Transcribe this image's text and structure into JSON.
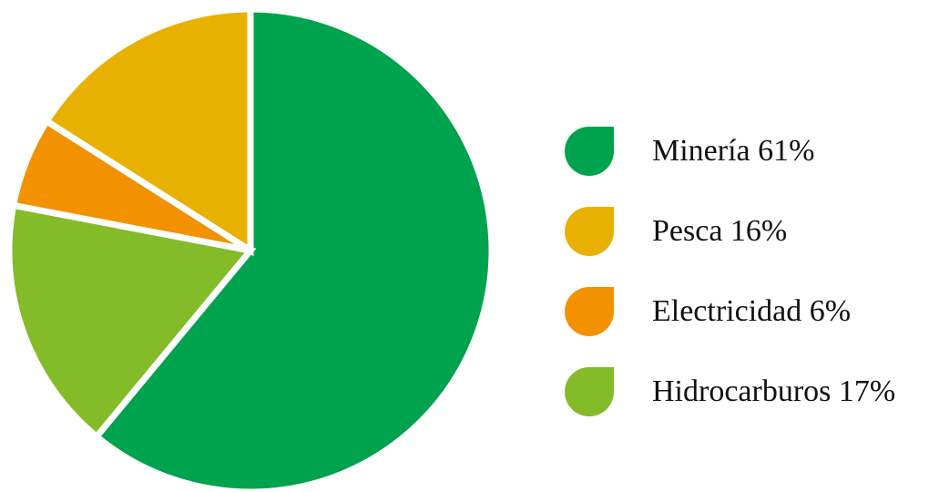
{
  "chart_data": {
    "type": "pie",
    "title": "",
    "legend_position": "right",
    "start_angle_deg": 0,
    "direction": "clockwise",
    "slices": [
      {
        "label": "Minería 61%",
        "name": "Minería",
        "value": 61,
        "color": "#00A34D"
      },
      {
        "label": "Hidrocarburos 17%",
        "name": "Hidrocarburos",
        "value": 17,
        "color": "#84BB29"
      },
      {
        "label": "Electricidad 6%",
        "name": "Electricidad",
        "value": 6,
        "color": "#F29200"
      },
      {
        "label": "Pesca 16%",
        "name": "Pesca",
        "value": 16,
        "color": "#E8B000"
      }
    ]
  },
  "legend": [
    {
      "label": "Minería 61%",
      "color": "#00A34D"
    },
    {
      "label": "Pesca 16%",
      "color": "#E8B000"
    },
    {
      "label": "Electricidad 6%",
      "color": "#F29200"
    },
    {
      "label": "Hidrocarburos 17%",
      "color": "#84BB29"
    }
  ]
}
